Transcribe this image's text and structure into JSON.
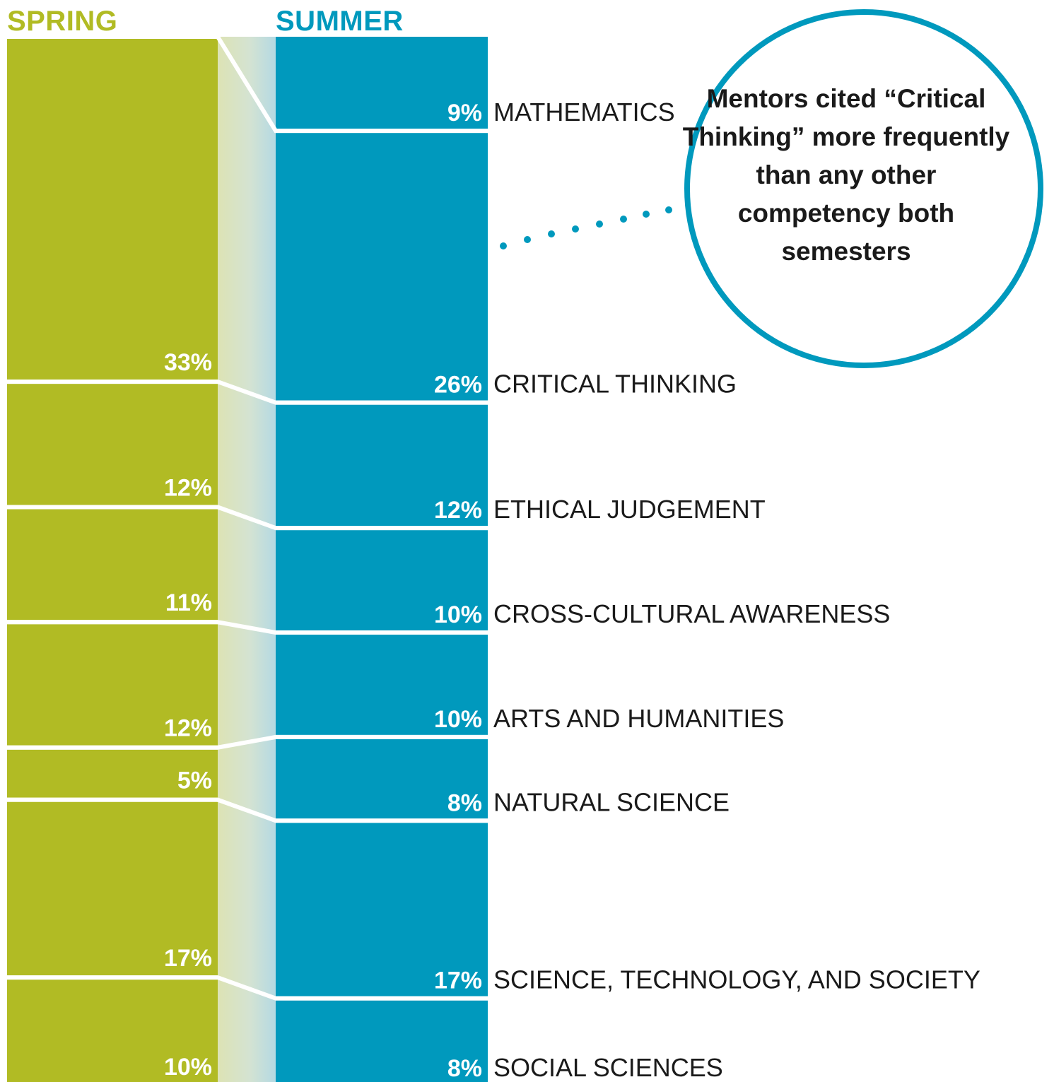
{
  "headers": {
    "spring": "SPRING",
    "summer": "SUMMER"
  },
  "callout": {
    "text": "Mentors cited “Critical Thinking” more frequently than any other competency both semesters"
  },
  "colors": {
    "spring": "#b1bb24",
    "summer": "#0099bd",
    "label_value": "#ffffff",
    "category_text": "#1a1a1a",
    "divider": "#ffffff",
    "callout_ring": "#0099bd",
    "dots": "#0099bd"
  },
  "chart_data": {
    "type": "stacked-bar-comparison",
    "series": [
      {
        "name": "SPRING",
        "values": [
          0,
          33,
          12,
          11,
          12,
          5,
          17,
          10
        ]
      },
      {
        "name": "SUMMER",
        "values": [
          9,
          26,
          12,
          10,
          10,
          8,
          17,
          8
        ]
      }
    ],
    "categories": [
      "MATHEMATICS",
      "CRITICAL THINKING",
      "ETHICAL JUDGEMENT",
      "CROSS-CULTURAL AWARENESS",
      "ARTS AND HUMANITIES",
      "NATURAL SCIENCE",
      "SCIENCE, TECHNOLOGY, AND SOCIETY",
      "SOCIAL SCIENCES"
    ],
    "spring_labels": [
      "",
      "33%",
      "12%",
      "11%",
      "12%",
      "5%",
      "17%",
      "10%"
    ],
    "summer_labels": [
      "9%",
      "26%",
      "12%",
      "10%",
      "10%",
      "8%",
      "17%",
      "8%"
    ]
  }
}
